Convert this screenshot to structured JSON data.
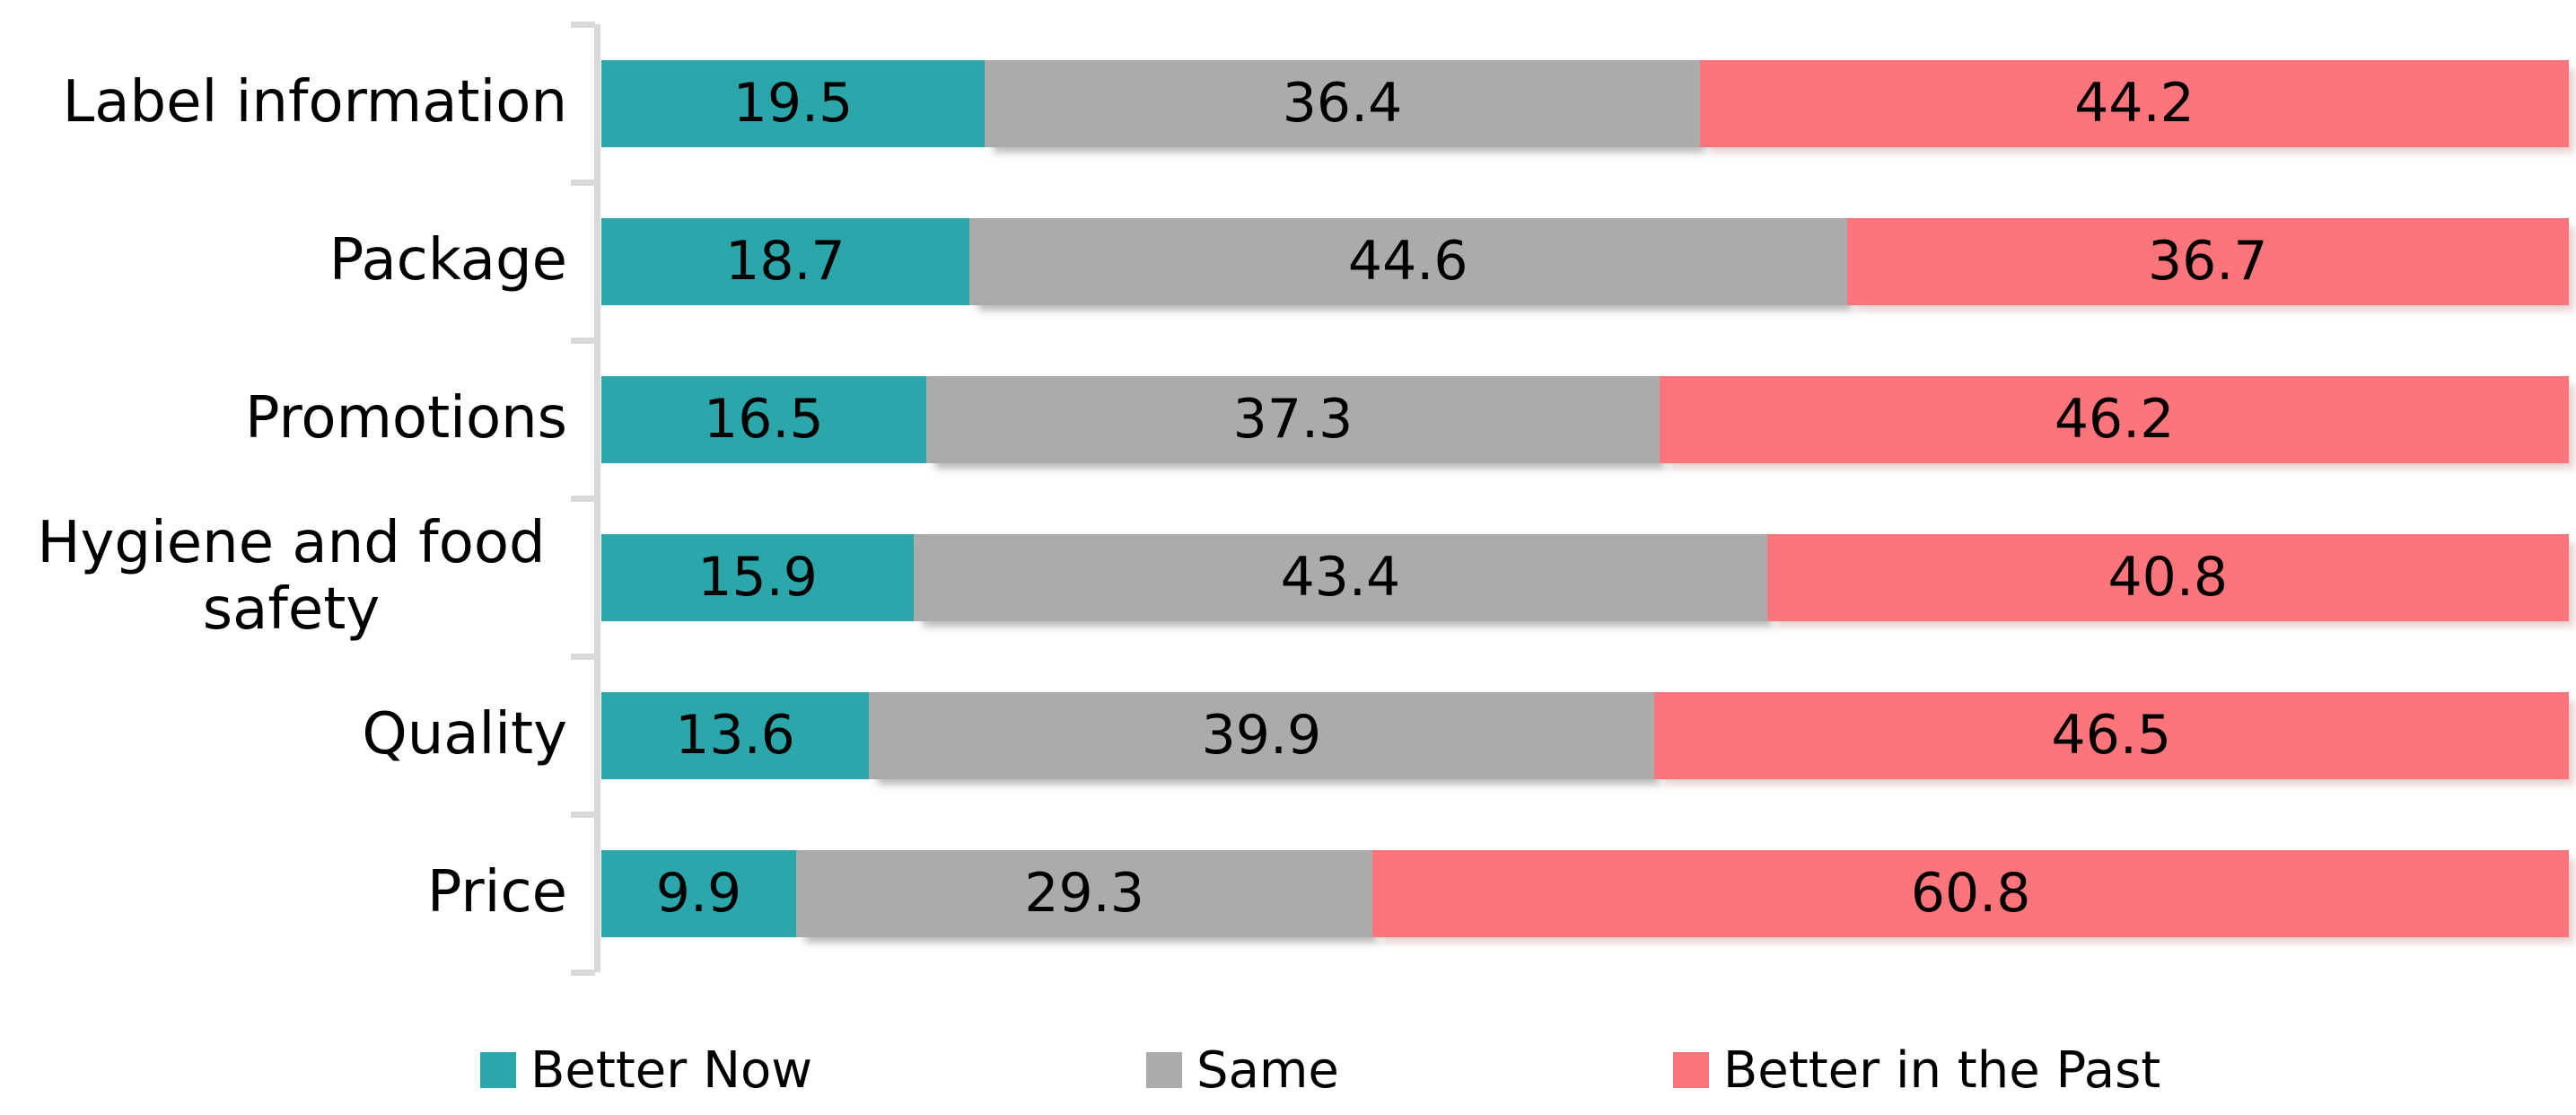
{
  "chart_data": {
    "type": "bar",
    "orientation": "horizontal-stacked",
    "title": "",
    "categories": [
      "Label information",
      "Package",
      "Promotions",
      "Hygiene and food safety",
      "Quality",
      "Price"
    ],
    "series": [
      {
        "name": "Better Now",
        "color": "#2BA6AB",
        "values": [
          19.5,
          18.7,
          16.5,
          15.9,
          13.6,
          9.9
        ]
      },
      {
        "name": "Same",
        "color": "#ABABAB",
        "values": [
          36.4,
          44.6,
          37.3,
          43.4,
          39.9,
          29.3
        ]
      },
      {
        "name": "Better in the Past",
        "color": "#FB757A",
        "values": [
          44.2,
          36.7,
          46.2,
          40.8,
          46.5,
          60.8
        ]
      }
    ],
    "value_axis": {
      "min": 0,
      "max": 100,
      "labels_visible": false,
      "gridlines": false
    },
    "category_axis": {
      "line_color": "#D9D9D9",
      "tick_color": "#D9D9D9",
      "ticks": 7
    },
    "data_labels": {
      "visible": true,
      "color": "#000000",
      "position": "center"
    },
    "legend_position": "bottom"
  }
}
